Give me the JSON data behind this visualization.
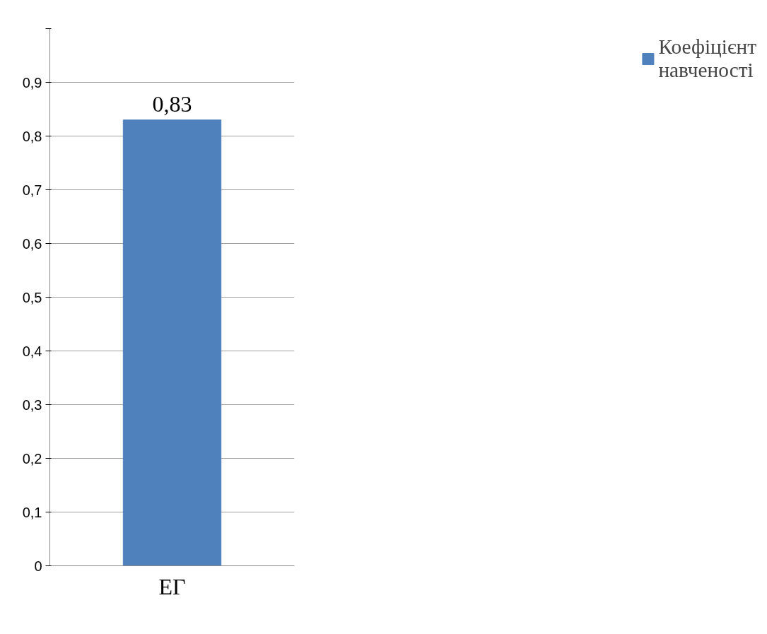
{
  "chart_data": {
    "type": "bar",
    "categories": [
      "ЕГ"
    ],
    "series": [
      {
        "name": "Коефіцієнт навченості",
        "color": "#4f81bd",
        "values": [
          0.83
        ],
        "value_labels": [
          "0,83"
        ]
      }
    ],
    "ylim": [
      0,
      1
    ],
    "yticks": [
      0,
      {
        "value": 0.1,
        "label": "0,1"
      },
      {
        "value": 0.2,
        "label": "0,2"
      },
      {
        "value": 0.3,
        "label": "0,3"
      },
      {
        "value": 0.4,
        "label": "0,4"
      },
      {
        "value": 0.5,
        "label": "0,5"
      },
      {
        "value": 0.6,
        "label": "0,6"
      },
      {
        "value": 0.7,
        "label": "0,7"
      },
      {
        "value": 0.8,
        "label": "0,8"
      },
      {
        "value": 0.9,
        "label": "0,9"
      },
      {
        "value": 1,
        "label": null
      }
    ],
    "grid": "y",
    "legend": "right"
  }
}
